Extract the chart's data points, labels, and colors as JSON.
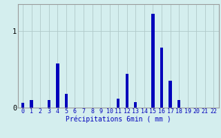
{
  "categories": [
    0,
    1,
    2,
    3,
    4,
    5,
    6,
    7,
    8,
    9,
    10,
    11,
    12,
    13,
    14,
    15,
    16,
    17,
    18,
    19,
    20,
    21,
    22
  ],
  "values": [
    0.06,
    0.1,
    0.0,
    0.1,
    0.58,
    0.18,
    0.0,
    0.0,
    0.0,
    0.0,
    0.0,
    0.12,
    0.44,
    0.07,
    0.0,
    1.22,
    0.78,
    0.35,
    0.1,
    0.0,
    0.0,
    0.0,
    0.0
  ],
  "bar_color": "#0000bb",
  "background_color": "#d4eeee",
  "xlabel": "Précipitations 6min ( mm )",
  "xlabel_color": "#0000bb",
  "ytick_labels": [
    "0",
    "1"
  ],
  "ytick_values": [
    0,
    1
  ],
  "ylim": [
    0,
    1.35
  ],
  "grid_color": "#b0c8c8",
  "axis_color": "#999999",
  "xlabel_fontsize": 7,
  "tick_fontsize": 6,
  "bar_width": 0.35
}
